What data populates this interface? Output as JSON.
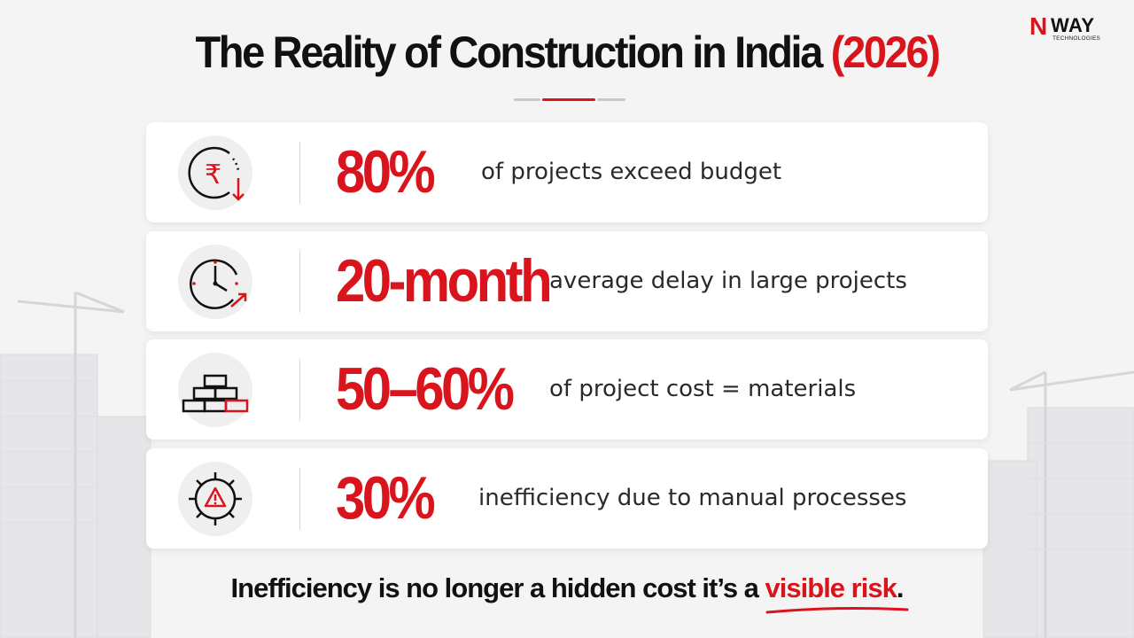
{
  "brand": {
    "logo_letter": "N",
    "logo_word": "WAY",
    "logo_sub": "TECHNOLOGIES"
  },
  "header": {
    "title": "The Reality of Construction in India",
    "year": "(2026)"
  },
  "stats": [
    {
      "icon": "rupee-down-icon",
      "value": "80%",
      "text": "of projects exceed budget"
    },
    {
      "icon": "clock-icon",
      "value": "20-month",
      "text": "average delay in large projects"
    },
    {
      "icon": "bricks-icon",
      "value": "50–60%",
      "text": "of project cost = materials"
    },
    {
      "icon": "gear-warning-icon",
      "value": "30%",
      "text": "inefficiency due to manual processes"
    }
  ],
  "footer": {
    "tagline_start": "Inefficiency is no longer a hidden cost  it’s a ",
    "tagline_highlight": "visible risk",
    "tagline_end": "."
  },
  "colors": {
    "accent": "#d9141c",
    "text": "#111111",
    "card": "#ffffff",
    "background": "#f4f4f5"
  }
}
